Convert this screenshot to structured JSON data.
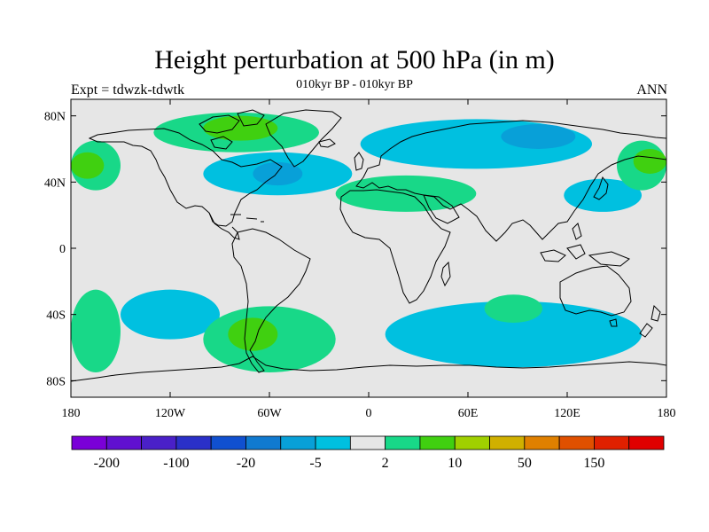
{
  "header": {
    "title": "Height perturbation at 500 hPa (in m)",
    "subtitle": "010kyr BP - 010kyr BP",
    "left_label": "Expt = tdwzk-tdwtk",
    "right_label": "ANN"
  },
  "map": {
    "projection": "cylindrical equidistant",
    "lon_range": [
      -180,
      180
    ],
    "lat_range": [
      -90,
      90
    ],
    "background_color": "#e6e6e6",
    "lat_ticks": [
      {
        "value": 80,
        "label": "80N"
      },
      {
        "value": 40,
        "label": "40N"
      },
      {
        "value": 0,
        "label": "0"
      },
      {
        "value": -40,
        "label": "40S"
      },
      {
        "value": -80,
        "label": "80S"
      }
    ],
    "lon_ticks": [
      {
        "value": -180,
        "label": "180"
      },
      {
        "value": -120,
        "label": "120W"
      },
      {
        "value": -60,
        "label": "60W"
      },
      {
        "value": 0,
        "label": "0"
      },
      {
        "value": 60,
        "label": "60E"
      },
      {
        "value": 120,
        "label": "120E"
      },
      {
        "value": 180,
        "label": "180"
      }
    ]
  },
  "colorbar": {
    "colors": [
      "#7a00d8",
      "#6010d0",
      "#4a20c8",
      "#2a30c8",
      "#1050d0",
      "#107ad0",
      "#08a0d8",
      "#00c0e0",
      "#e6e6e6",
      "#18d888",
      "#40d010",
      "#a0d000",
      "#d0b000",
      "#e08000",
      "#e05000",
      "#e02000",
      "#e00000"
    ],
    "labels": [
      {
        "boundary": 1,
        "text": "-200"
      },
      {
        "boundary": 3,
        "text": "-100"
      },
      {
        "boundary": 5,
        "text": "-20"
      },
      {
        "boundary": 7,
        "text": "-5"
      },
      {
        "boundary": 9,
        "text": "2"
      },
      {
        "boundary": 11,
        "text": "10"
      },
      {
        "boundary": 13,
        "text": "50"
      },
      {
        "boundary": 15,
        "text": "150"
      }
    ]
  },
  "chart_data": {
    "type": "heatmap",
    "title": "Height perturbation at 500 hPa (in m)",
    "subtitle": "010kyr BP - 010kyr BP",
    "variable_units": "m",
    "colorbar_boundaries": [
      "-200",
      "-100",
      "-20",
      "-5",
      "2",
      "10",
      "50",
      "150"
    ],
    "regions": [
      {
        "name": "Canadian Arctic",
        "value_class": "5 to 10",
        "color": "#18d888",
        "lon": [
          -130,
          -30
        ],
        "lat": [
          58,
          82
        ]
      },
      {
        "name": "Canadian Arctic core",
        "value_class": "10 to 20",
        "color": "#40d010",
        "lon": [
          -100,
          -55
        ],
        "lat": [
          65,
          80
        ]
      },
      {
        "name": "North Pacific east",
        "value_class": "5 to 10",
        "color": "#18d888",
        "lon": [
          -180,
          -150
        ],
        "lat": [
          35,
          65
        ]
      },
      {
        "name": "North Pacific east core",
        "value_class": "10 to 20",
        "color": "#40d010",
        "lon": [
          -180,
          -160
        ],
        "lat": [
          42,
          58
        ]
      },
      {
        "name": "North Atlantic trough",
        "value_class": "-5 to -2",
        "color": "#00c0e0",
        "lon": [
          -100,
          -10
        ],
        "lat": [
          32,
          58
        ]
      },
      {
        "name": "North Atlantic trough core",
        "value_class": "-10 to -5",
        "color": "#08a0d8",
        "lon": [
          -70,
          -40
        ],
        "lat": [
          38,
          52
        ]
      },
      {
        "name": "Eurasia trough",
        "value_class": "-5 to -2",
        "color": "#00c0e0",
        "lon": [
          -5,
          135
        ],
        "lat": [
          48,
          78
        ]
      },
      {
        "name": "Siberia trough core",
        "value_class": "-10 to -5",
        "color": "#08a0d8",
        "lon": [
          80,
          125
        ],
        "lat": [
          60,
          75
        ]
      },
      {
        "name": "Mediterranean ridge",
        "value_class": "5 to 10",
        "color": "#18d888",
        "lon": [
          -20,
          65
        ],
        "lat": [
          22,
          44
        ]
      },
      {
        "name": "West Pacific trough",
        "value_class": "-5 to -2",
        "color": "#00c0e0",
        "lon": [
          118,
          165
        ],
        "lat": [
          22,
          42
        ]
      },
      {
        "name": "NW Pacific ridge",
        "value_class": "5 to 10",
        "color": "#18d888",
        "lon": [
          150,
          180
        ],
        "lat": [
          35,
          65
        ]
      },
      {
        "name": "NW Pacific ridge core",
        "value_class": "10 to 20",
        "color": "#40d010",
        "lon": [
          160,
          180
        ],
        "lat": [
          45,
          60
        ]
      },
      {
        "name": "South Pacific trough",
        "value_class": "-5 to -2",
        "color": "#00c0e0",
        "lon": [
          -150,
          -90
        ],
        "lat": [
          -55,
          -25
        ]
      },
      {
        "name": "South Pacific ridge",
        "value_class": "5 to 10",
        "color": "#18d888",
        "lon": [
          -180,
          -150
        ],
        "lat": [
          -75,
          -25
        ]
      },
      {
        "name": "South Atlantic ridge",
        "value_class": "5 to 10",
        "color": "#18d888",
        "lon": [
          -100,
          -20
        ],
        "lat": [
          -75,
          -35
        ]
      },
      {
        "name": "South Atlantic ridge core",
        "value_class": "10 to 20",
        "color": "#40d010",
        "lon": [
          -85,
          -55
        ],
        "lat": [
          -62,
          -42
        ]
      },
      {
        "name": "Southern Indian Ocean trough",
        "value_class": "-5 to -2",
        "color": "#00c0e0",
        "lon": [
          10,
          165
        ],
        "lat": [
          -72,
          -32
        ]
      },
      {
        "name": "Southern Indian Ocean ridge",
        "value_class": "5 to 10",
        "color": "#18d888",
        "lon": [
          70,
          105
        ],
        "lat": [
          -45,
          -28
        ]
      }
    ]
  }
}
